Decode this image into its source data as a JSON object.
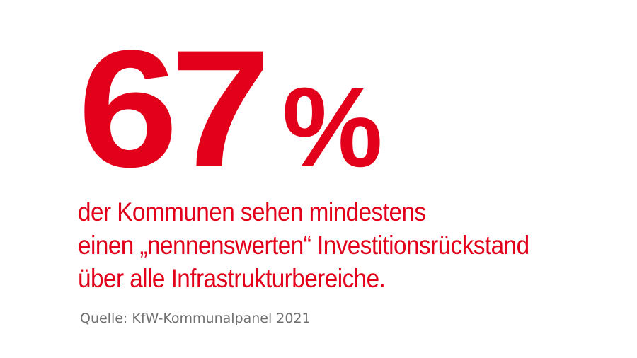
{
  "stat": {
    "number": "67",
    "unit": "%"
  },
  "description": {
    "lines": [
      "der Kommunen sehen mindestens",
      "einen „nennenswerten“ Investitionsrückstand",
      "über alle Infrastrukturbereiche."
    ]
  },
  "source": "Quelle: KfW-Kommunalpanel 2021",
  "colors": {
    "accent": "#e2001a",
    "source_text": "#707070",
    "background": "#ffffff"
  }
}
